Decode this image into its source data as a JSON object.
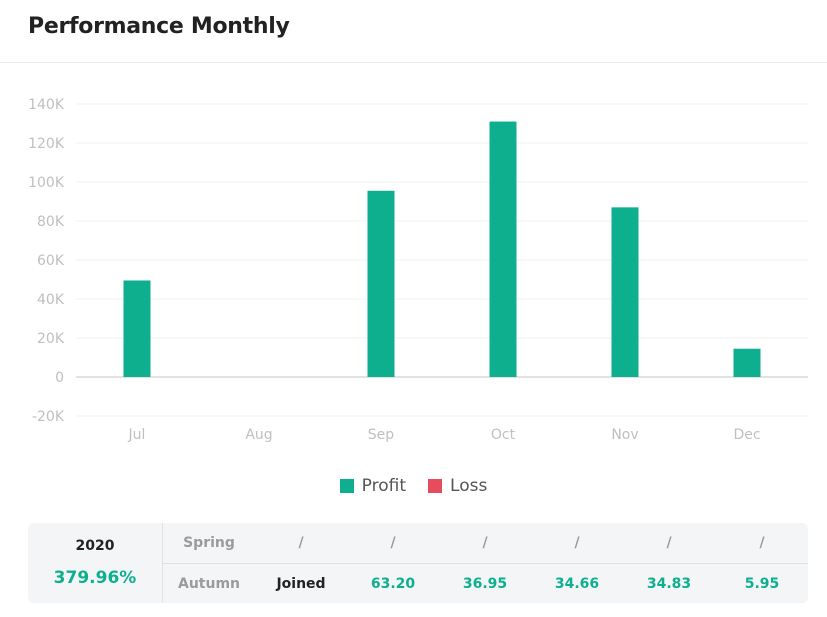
{
  "card": {
    "title": "Performance Monthly"
  },
  "colors": {
    "profit": "#0eaf8f",
    "loss": "#e54d5f",
    "axis_text": "#c0c0c0",
    "grid": "#f1f1f1",
    "zero_line": "#d9d9d9"
  },
  "chart_data": {
    "type": "bar",
    "categories": [
      "Jul",
      "Aug",
      "Sep",
      "Oct",
      "Nov",
      "Dec"
    ],
    "series": [
      {
        "name": "Profit",
        "values": [
          49500,
          0,
          95500,
          131000,
          87000,
          14500
        ]
      },
      {
        "name": "Loss",
        "values": [
          0,
          0,
          0,
          0,
          0,
          0
        ]
      }
    ],
    "ylim": [
      -20000,
      140000
    ],
    "yticks": [
      140000,
      120000,
      100000,
      80000,
      60000,
      40000,
      20000,
      0,
      -20000
    ],
    "ytick_labels": [
      "140K",
      "120K",
      "100K",
      "80K",
      "60K",
      "40K",
      "20K",
      "0",
      "-20K"
    ],
    "grid": true,
    "legend_position": "bottom-center"
  },
  "legend": {
    "profit": "Profit",
    "loss": "Loss"
  },
  "stats": {
    "year": "2020",
    "year_value": "379.96%",
    "row1": {
      "label": "Spring",
      "values": [
        "/",
        "/",
        "/",
        "/",
        "/",
        "/"
      ]
    },
    "row2": {
      "label": "Autumn",
      "values": [
        "Joined",
        "63.20",
        "36.95",
        "34.66",
        "34.83",
        "5.95"
      ]
    }
  }
}
